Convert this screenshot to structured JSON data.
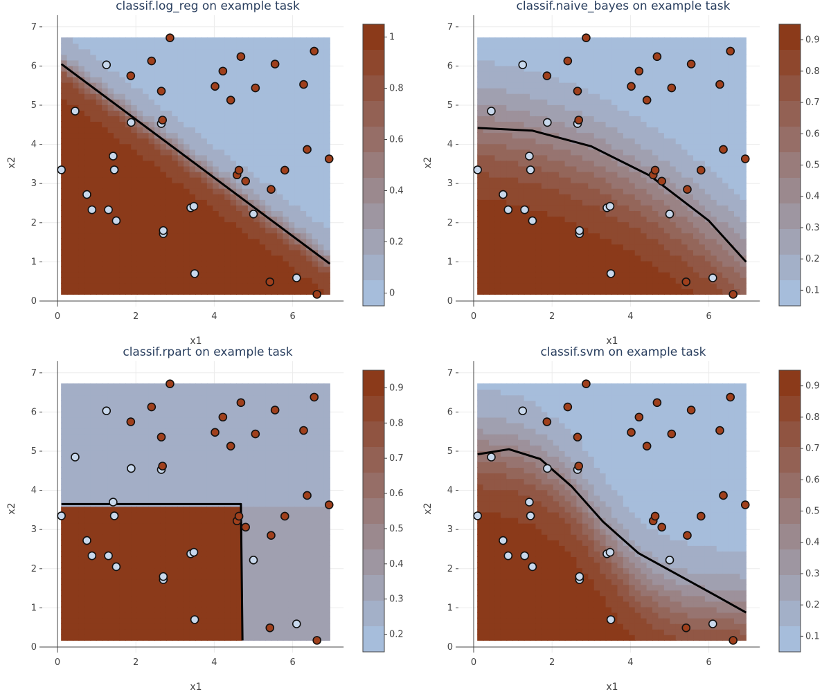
{
  "colors": {
    "low": "#a6bddb",
    "high": "#8b3a1a",
    "point_class_a": "#c8d8ec",
    "point_class_b": "#a0401c",
    "boundary": "#000000",
    "contour": "#7b9ccc"
  },
  "chart_data": [
    {
      "type": "contour",
      "title": "classif.log_reg on example task",
      "xlabel": "x1",
      "ylabel": "x2",
      "xlim": [
        0,
        7
      ],
      "ylim": [
        0,
        7
      ],
      "x_ticks": [
        "0",
        "2",
        "4",
        "6"
      ],
      "y_ticks": [
        "0",
        "1",
        "2",
        "3",
        "4",
        "5",
        "6",
        "7"
      ],
      "colorbar": {
        "min": -0.05,
        "max": 1.05,
        "ticks": [
          "0",
          "0.2",
          "0.4",
          "0.6",
          "0.8",
          "1"
        ]
      },
      "boundary": [
        [
          0.1,
          6.05
        ],
        [
          6.95,
          0.95
        ]
      ]
    },
    {
      "type": "contour",
      "title": "classif.naive_bayes on example task",
      "xlabel": "x1",
      "ylabel": "x2",
      "xlim": [
        0,
        7
      ],
      "ylim": [
        0,
        7
      ],
      "x_ticks": [
        "0",
        "2",
        "4",
        "6"
      ],
      "y_ticks": [
        "0",
        "1",
        "2",
        "3",
        "4",
        "5",
        "6",
        "7"
      ],
      "colorbar": {
        "min": 0.05,
        "max": 0.95,
        "ticks": [
          "0.1",
          "0.2",
          "0.3",
          "0.4",
          "0.5",
          "0.6",
          "0.7",
          "0.8",
          "0.9"
        ]
      },
      "boundary": [
        [
          0.1,
          4.42
        ],
        [
          1.5,
          4.35
        ],
        [
          3.0,
          3.95
        ],
        [
          4.5,
          3.2
        ],
        [
          6.0,
          2.05
        ],
        [
          6.95,
          1.0
        ]
      ]
    },
    {
      "type": "contour",
      "title": "classif.rpart on example task",
      "xlabel": "x1",
      "ylabel": "x2",
      "xlim": [
        0,
        7
      ],
      "ylim": [
        0,
        7
      ],
      "x_ticks": [
        "0",
        "2",
        "4",
        "6"
      ],
      "y_ticks": [
        "0",
        "1",
        "2",
        "3",
        "4",
        "5",
        "6",
        "7"
      ],
      "colorbar": {
        "min": 0.15,
        "max": 0.95,
        "ticks": [
          "0.2",
          "0.3",
          "0.4",
          "0.5",
          "0.6",
          "0.7",
          "0.8",
          "0.9"
        ]
      },
      "boundary": [
        [
          0.1,
          3.65
        ],
        [
          4.68,
          3.65
        ],
        [
          4.72,
          0.17
        ]
      ]
    },
    {
      "type": "contour",
      "title": "classif.svm on example task",
      "xlabel": "x1",
      "ylabel": "x2",
      "xlim": [
        0,
        7
      ],
      "ylim": [
        0,
        7
      ],
      "x_ticks": [
        "0",
        "2",
        "4",
        "6"
      ],
      "y_ticks": [
        "0",
        "1",
        "2",
        "3",
        "4",
        "5",
        "6",
        "7"
      ],
      "colorbar": {
        "min": 0.05,
        "max": 0.95,
        "ticks": [
          "0.1",
          "0.2",
          "0.3",
          "0.4",
          "0.5",
          "0.6",
          "0.7",
          "0.8",
          "0.9"
        ]
      },
      "boundary": [
        [
          0.1,
          4.92
        ],
        [
          0.9,
          5.05
        ],
        [
          1.7,
          4.8
        ],
        [
          2.5,
          4.1
        ],
        [
          3.3,
          3.2
        ],
        [
          4.2,
          2.4
        ],
        [
          5.2,
          1.85
        ],
        [
          6.2,
          1.3
        ],
        [
          6.95,
          0.88
        ]
      ]
    }
  ],
  "points": {
    "class_a": [
      [
        0.1,
        3.35
      ],
      [
        0.45,
        4.85
      ],
      [
        0.75,
        2.72
      ],
      [
        0.88,
        2.33
      ],
      [
        1.25,
        6.03
      ],
      [
        1.3,
        2.33
      ],
      [
        1.42,
        3.7
      ],
      [
        1.45,
        3.35
      ],
      [
        1.5,
        2.05
      ],
      [
        1.88,
        4.56
      ],
      [
        2.65,
        4.53
      ],
      [
        2.7,
        1.72
      ],
      [
        2.7,
        1.8
      ],
      [
        3.4,
        2.38
      ],
      [
        3.48,
        2.42
      ],
      [
        3.5,
        0.7
      ],
      [
        5.0,
        2.22
      ],
      [
        6.1,
        0.59
      ]
    ],
    "class_b": [
      [
        1.87,
        5.75
      ],
      [
        2.4,
        6.13
      ],
      [
        2.65,
        5.36
      ],
      [
        2.68,
        4.62
      ],
      [
        2.87,
        6.72
      ],
      [
        4.02,
        5.48
      ],
      [
        4.22,
        5.87
      ],
      [
        4.42,
        5.13
      ],
      [
        4.58,
        3.22
      ],
      [
        4.63,
        3.34
      ],
      [
        4.68,
        6.24
      ],
      [
        4.8,
        3.06
      ],
      [
        5.05,
        5.44
      ],
      [
        5.42,
        0.49
      ],
      [
        5.45,
        2.85
      ],
      [
        5.55,
        6.05
      ],
      [
        5.8,
        3.34
      ],
      [
        6.28,
        5.53
      ],
      [
        6.37,
        3.87
      ],
      [
        6.55,
        6.38
      ],
      [
        6.62,
        0.17
      ],
      [
        6.93,
        3.63
      ]
    ]
  }
}
